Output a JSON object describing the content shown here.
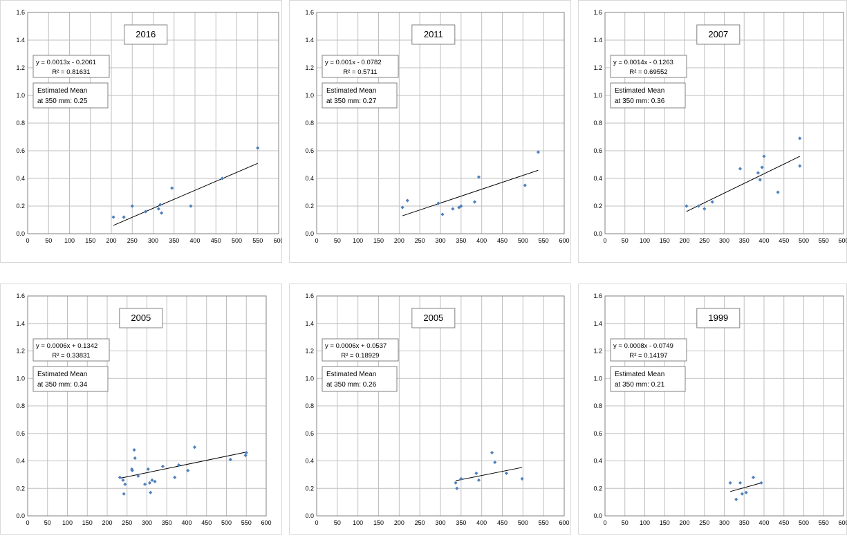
{
  "chart_data": [
    {
      "type": "scatter",
      "title": "2016",
      "xlim": [
        0,
        600
      ],
      "ylim": [
        0,
        1.6
      ],
      "xticks": [
        "0",
        "50",
        "100",
        "150",
        "200",
        "250",
        "300",
        "350",
        "400",
        "450",
        "500",
        "550",
        "600"
      ],
      "yticks": [
        "0.0",
        "0.2",
        "0.4",
        "0.6",
        "0.8",
        "1.0",
        "1.2",
        "1.4",
        "1.6"
      ],
      "grid": true,
      "points": [
        [
          205,
          0.12
        ],
        [
          230,
          0.12
        ],
        [
          250,
          0.2
        ],
        [
          282,
          0.16
        ],
        [
          313,
          0.18
        ],
        [
          317,
          0.21
        ],
        [
          320,
          0.15
        ],
        [
          345,
          0.33
        ],
        [
          390,
          0.2
        ],
        [
          465,
          0.4
        ],
        [
          550,
          0.62
        ]
      ],
      "trendline": {
        "x": [
          205,
          550
        ]
      },
      "equation": "y = 0.0013x - 0.2061",
      "r2": "R² = 0.81631",
      "note_lines": [
        "Estimated Mean",
        "at 350 mm: 0.25"
      ],
      "colors": {
        "marker": "#4f81bd",
        "line": "#000000",
        "grid": "#bfbfbf"
      }
    },
    {
      "type": "scatter",
      "title": "2011",
      "xlim": [
        0,
        600
      ],
      "ylim": [
        0,
        1.6
      ],
      "xticks": [
        "0",
        "50",
        "100",
        "150",
        "200",
        "250",
        "300",
        "350",
        "400",
        "450",
        "500",
        "550",
        "600"
      ],
      "yticks": [
        "0.0",
        "0.2",
        "0.4",
        "0.6",
        "0.8",
        "1.0",
        "1.2",
        "1.4",
        "1.6"
      ],
      "grid": true,
      "points": [
        [
          208,
          0.19
        ],
        [
          220,
          0.24
        ],
        [
          295,
          0.22
        ],
        [
          305,
          0.14
        ],
        [
          330,
          0.18
        ],
        [
          345,
          0.19
        ],
        [
          350,
          0.2
        ],
        [
          383,
          0.23
        ],
        [
          393,
          0.41
        ],
        [
          505,
          0.35
        ],
        [
          537,
          0.59
        ]
      ],
      "trendline": {
        "x": [
          208,
          537
        ]
      },
      "equation": "y = 0.001x - 0.0782",
      "r2": "R² = 0.5711",
      "note_lines": [
        "Estimated Mean",
        "at 350 mm: 0.27"
      ],
      "colors": {
        "marker": "#4f81bd",
        "line": "#000000",
        "grid": "#bfbfbf"
      }
    },
    {
      "type": "scatter",
      "title": "2007",
      "xlim": [
        0,
        600
      ],
      "ylim": [
        0,
        1.6
      ],
      "xticks": [
        "0",
        "50",
        "100",
        "150",
        "200",
        "250",
        "300",
        "350",
        "400",
        "450",
        "500",
        "550",
        "600"
      ],
      "yticks": [
        "0.0",
        "0.2",
        "0.4",
        "0.6",
        "0.8",
        "1.0",
        "1.2",
        "1.4",
        "1.6"
      ],
      "grid": true,
      "points": [
        [
          205,
          0.2
        ],
        [
          235,
          0.2
        ],
        [
          250,
          0.18
        ],
        [
          270,
          0.23
        ],
        [
          340,
          0.47
        ],
        [
          385,
          0.44
        ],
        [
          390,
          0.39
        ],
        [
          395,
          0.48
        ],
        [
          400,
          0.56
        ],
        [
          435,
          0.3
        ],
        [
          490,
          0.49
        ],
        [
          490,
          0.69
        ]
      ],
      "trendline": {
        "x": [
          205,
          490
        ]
      },
      "equation": "y = 0.0014x - 0.1263",
      "r2": "R² = 0.69552",
      "note_lines": [
        "Estimated Mean",
        "at 350 mm: 0.36"
      ],
      "colors": {
        "marker": "#4f81bd",
        "line": "#000000",
        "grid": "#bfbfbf"
      }
    },
    {
      "type": "scatter",
      "title": "2005",
      "xlim": [
        0,
        600
      ],
      "ylim": [
        0,
        1.6
      ],
      "xticks": [
        "0",
        "50",
        "100",
        "150",
        "200",
        "250",
        "300",
        "350",
        "400",
        "450",
        "500",
        "550",
        "600"
      ],
      "yticks": [
        "0.0",
        "0.2",
        "0.4",
        "0.6",
        "0.8",
        "1.0",
        "1.2",
        "1.4",
        "1.6"
      ],
      "grid": true,
      "points": [
        [
          232,
          0.28
        ],
        [
          240,
          0.26
        ],
        [
          242,
          0.16
        ],
        [
          245,
          0.23
        ],
        [
          262,
          0.34
        ],
        [
          263,
          0.33
        ],
        [
          268,
          0.48
        ],
        [
          270,
          0.42
        ],
        [
          278,
          0.29
        ],
        [
          295,
          0.23
        ],
        [
          303,
          0.34
        ],
        [
          307,
          0.24
        ],
        [
          309,
          0.17
        ],
        [
          313,
          0.26
        ],
        [
          320,
          0.25
        ],
        [
          340,
          0.36
        ],
        [
          370,
          0.28
        ],
        [
          380,
          0.37
        ],
        [
          403,
          0.33
        ],
        [
          420,
          0.5
        ],
        [
          510,
          0.41
        ],
        [
          548,
          0.44
        ],
        [
          550,
          0.46
        ]
      ],
      "trendline": {
        "x": [
          232,
          550
        ]
      },
      "equation": "y = 0.0006x + 0.1342",
      "r2": "R² = 0.33831",
      "note_lines": [
        "Estimated Mean",
        "at 350 mm: 0.34"
      ],
      "colors": {
        "marker": "#4f81bd",
        "line": "#000000",
        "grid": "#bfbfbf"
      }
    },
    {
      "type": "scatter",
      "title": "2005",
      "xlim": [
        0,
        600
      ],
      "ylim": [
        0,
        1.6
      ],
      "xticks": [
        "0",
        "50",
        "100",
        "150",
        "200",
        "250",
        "300",
        "350",
        "400",
        "450",
        "500",
        "550",
        "600"
      ],
      "yticks": [
        "0.0",
        "0.2",
        "0.4",
        "0.6",
        "0.8",
        "1.0",
        "1.2",
        "1.4",
        "1.6"
      ],
      "grid": true,
      "points": [
        [
          337,
          0.24
        ],
        [
          340,
          0.2
        ],
        [
          350,
          0.27
        ],
        [
          387,
          0.31
        ],
        [
          393,
          0.26
        ],
        [
          425,
          0.46
        ],
        [
          432,
          0.39
        ],
        [
          460,
          0.31
        ],
        [
          498,
          0.27
        ]
      ],
      "trendline": {
        "x": [
          337,
          498
        ]
      },
      "equation": "y = 0.0006x + 0.0537",
      "r2": "R² = 0.18929",
      "note_lines": [
        "Estimated Mean",
        "at 350 mm: 0.26"
      ],
      "colors": {
        "marker": "#4f81bd",
        "line": "#000000",
        "grid": "#bfbfbf"
      }
    },
    {
      "type": "scatter",
      "title": "1999",
      "xlim": [
        0,
        600
      ],
      "ylim": [
        0,
        1.6
      ],
      "xticks": [
        "0",
        "50",
        "100",
        "150",
        "200",
        "250",
        "300",
        "350",
        "400",
        "450",
        "500",
        "550",
        "600"
      ],
      "yticks": [
        "0.0",
        "0.2",
        "0.4",
        "0.6",
        "0.8",
        "1.0",
        "1.2",
        "1.4",
        "1.6"
      ],
      "grid": true,
      "points": [
        [
          315,
          0.24
        ],
        [
          330,
          0.12
        ],
        [
          340,
          0.24
        ],
        [
          345,
          0.16
        ],
        [
          355,
          0.17
        ],
        [
          373,
          0.28
        ],
        [
          393,
          0.24
        ]
      ],
      "trendline": {
        "x": [
          315,
          393
        ]
      },
      "equation": "y = 0.0008x - 0.0749",
      "r2": "R² = 0.14197",
      "note_lines": [
        "Estimated Mean",
        "at 350 mm: 0.21"
      ],
      "colors": {
        "marker": "#4f81bd",
        "line": "#000000",
        "grid": "#bfbfbf"
      }
    }
  ]
}
